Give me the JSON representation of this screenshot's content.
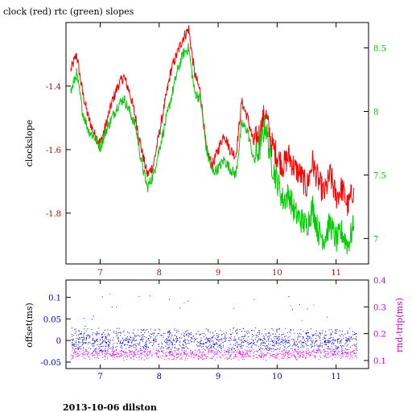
{
  "title": "clock (red) rtc (green) slopes",
  "footer": "2013-10-06 dilston",
  "colors": {
    "clock": "#ff0000",
    "rtc": "#00cc00",
    "offset": "#0000ff",
    "rndtrip": "#ff00ff",
    "black": "#000000"
  },
  "chart_data": [
    {
      "type": "line",
      "title": "clock (red) rtc (green) slopes",
      "ylabel": "clockslope",
      "y2label": "",
      "xlim": [
        6.42,
        11.55
      ],
      "ylim": [
        -1.96,
        -1.2
      ],
      "y2lim": [
        6.8,
        8.7
      ],
      "x_ticks": [
        "7",
        "8",
        "9",
        "10",
        "11"
      ],
      "y_ticks": [
        "-1.4",
        "-1.6",
        "-1.8"
      ],
      "y2_ticks": [
        "8.5",
        "8",
        "7.5",
        "7"
      ],
      "series": [
        {
          "name": "clock",
          "axis": "left",
          "x": [
            6.5,
            6.6,
            6.7,
            6.8,
            6.9,
            7.0,
            7.1,
            7.2,
            7.3,
            7.4,
            7.5,
            7.6,
            7.7,
            7.8,
            7.9,
            8.0,
            8.1,
            8.2,
            8.3,
            8.4,
            8.5,
            8.6,
            8.7,
            8.8,
            8.9,
            9.0,
            9.1,
            9.2,
            9.3,
            9.4,
            9.5,
            9.6,
            9.7,
            9.8,
            9.9,
            10.0,
            10.1,
            10.2,
            10.3,
            10.4,
            10.5,
            10.6,
            10.7,
            10.8,
            10.9,
            11.0,
            11.1,
            11.2,
            11.3
          ],
          "values": [
            -1.35,
            -1.3,
            -1.42,
            -1.5,
            -1.55,
            -1.58,
            -1.52,
            -1.45,
            -1.4,
            -1.37,
            -1.42,
            -1.5,
            -1.6,
            -1.68,
            -1.65,
            -1.55,
            -1.45,
            -1.35,
            -1.3,
            -1.25,
            -1.22,
            -1.36,
            -1.42,
            -1.6,
            -1.65,
            -1.6,
            -1.55,
            -1.6,
            -1.62,
            -1.45,
            -1.5,
            -1.58,
            -1.55,
            -1.48,
            -1.58,
            -1.62,
            -1.65,
            -1.62,
            -1.66,
            -1.68,
            -1.72,
            -1.64,
            -1.7,
            -1.74,
            -1.68,
            -1.75,
            -1.72,
            -1.78,
            -1.72
          ]
        },
        {
          "name": "rtc",
          "axis": "right",
          "x": [
            6.5,
            6.6,
            6.7,
            6.8,
            6.9,
            7.0,
            7.1,
            7.2,
            7.3,
            7.4,
            7.5,
            7.6,
            7.7,
            7.8,
            7.9,
            8.0,
            8.1,
            8.2,
            8.3,
            8.4,
            8.5,
            8.6,
            8.7,
            8.8,
            8.9,
            9.0,
            9.1,
            9.2,
            9.3,
            9.4,
            9.5,
            9.6,
            9.7,
            9.8,
            9.9,
            10.0,
            10.1,
            10.2,
            10.3,
            10.4,
            10.5,
            10.6,
            10.7,
            10.8,
            10.9,
            11.0,
            11.1,
            11.2,
            11.3
          ],
          "values": [
            8.15,
            8.3,
            8.0,
            7.85,
            7.8,
            7.72,
            7.85,
            7.95,
            8.05,
            8.1,
            8.0,
            7.88,
            7.6,
            7.4,
            7.5,
            7.7,
            7.9,
            8.1,
            8.3,
            8.45,
            8.5,
            8.15,
            8.1,
            7.7,
            7.52,
            7.55,
            7.62,
            7.55,
            7.5,
            7.9,
            7.85,
            7.62,
            7.7,
            7.9,
            7.6,
            7.45,
            7.3,
            7.35,
            7.2,
            7.15,
            7.1,
            7.25,
            7.05,
            7.0,
            7.12,
            6.98,
            7.05,
            6.95,
            7.1
          ]
        }
      ]
    },
    {
      "type": "scatter",
      "ylabel": "offset(ms)",
      "y2label": "rnd-trip(ms)",
      "xlim": [
        6.42,
        11.55
      ],
      "ylim": [
        -0.065,
        0.14
      ],
      "y2lim": [
        0.07,
        0.4
      ],
      "x_ticks": [
        "7",
        "8",
        "9",
        "10",
        "11"
      ],
      "y_ticks": [
        "0.1",
        "0.05",
        "0",
        "-0.05"
      ],
      "y2_ticks": [
        "0.4",
        "0.3",
        "0.2",
        "0.1"
      ],
      "series": [
        {
          "name": "offset",
          "axis": "left",
          "x_range": [
            6.5,
            11.35
          ],
          "center": 0.0,
          "spread": 0.02
        },
        {
          "name": "rnd-trip",
          "axis": "right",
          "x_range": [
            6.5,
            11.35
          ],
          "center": 0.125,
          "spread": 0.015
        }
      ]
    }
  ]
}
